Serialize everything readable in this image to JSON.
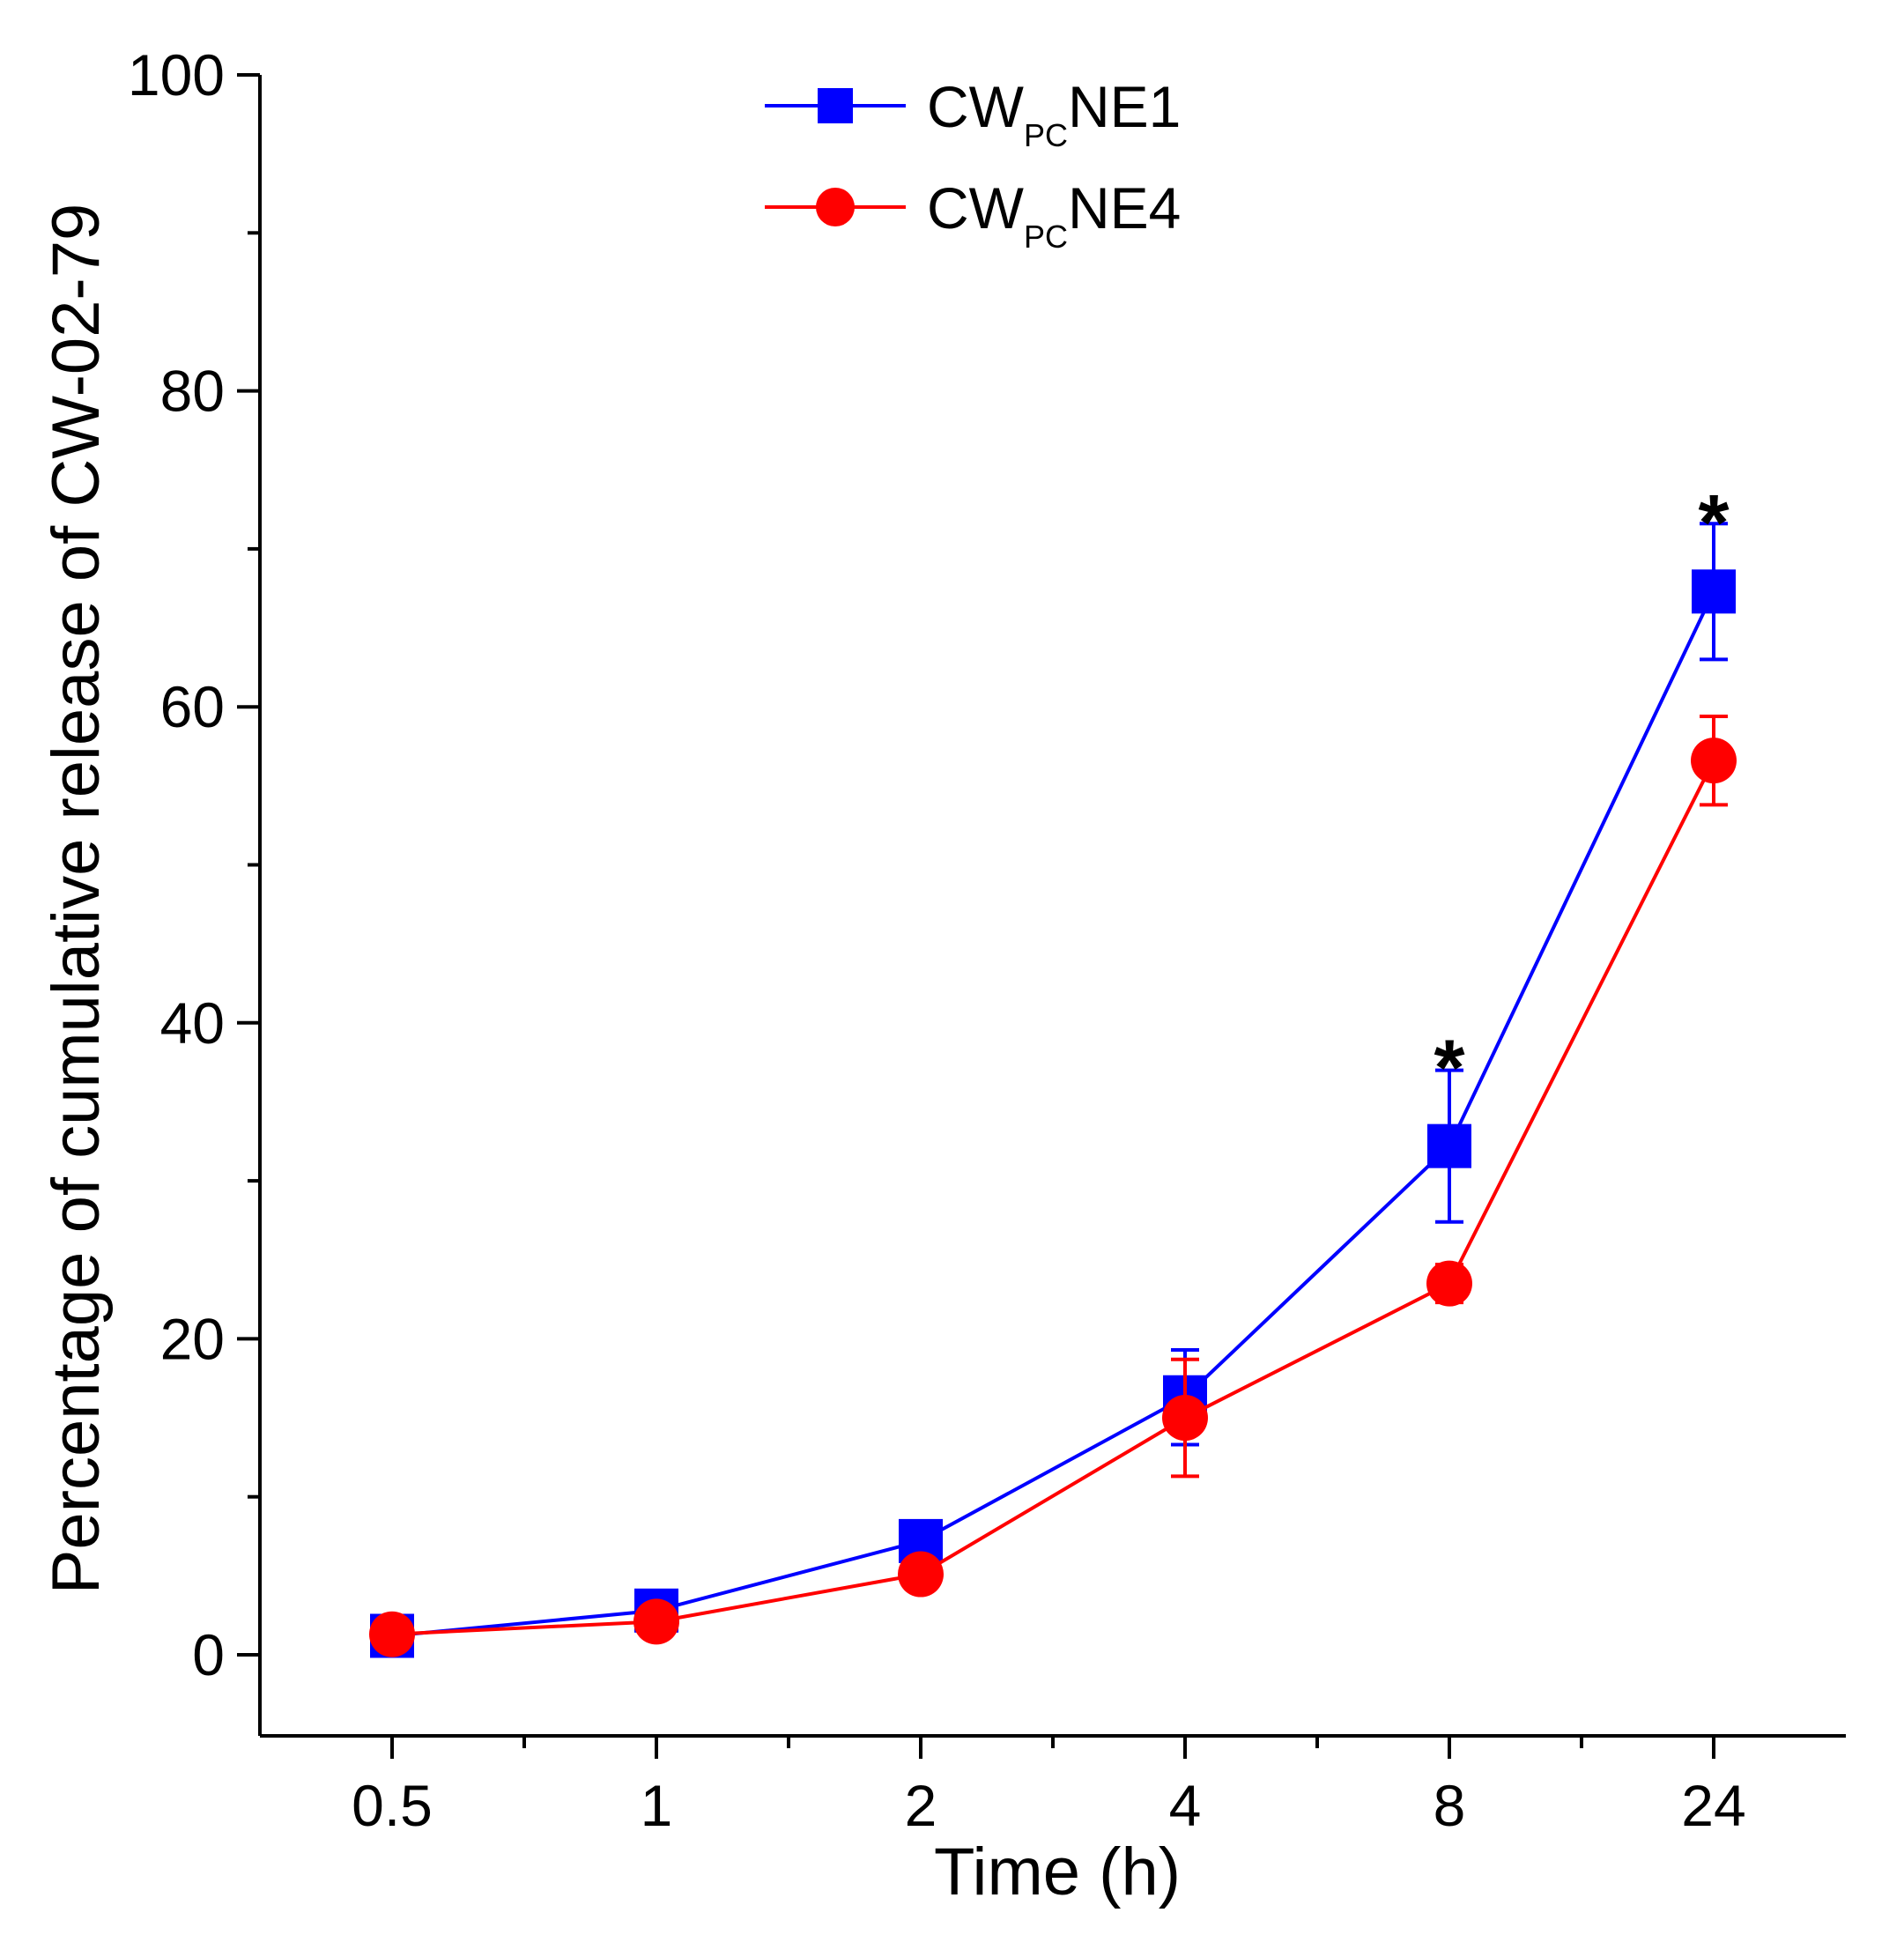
{
  "chart_data": {
    "type": "line",
    "xlabel": "Time (h)",
    "ylabel": "Percentage of cumulative release of CW-02-79",
    "categories": [
      "0.5",
      "1",
      "2",
      "4",
      "8",
      "24"
    ],
    "ylim": [
      -5,
      100
    ],
    "yticks": [
      "0",
      "20",
      "40",
      "60",
      "80",
      "100"
    ],
    "yticks_values": [
      0,
      20,
      40,
      60,
      80,
      100
    ],
    "grid": false,
    "legend_position": "top-center",
    "series": [
      {
        "name": "CW_PC NE1",
        "label_main": "CW",
        "label_sub": "PC",
        "label_tail": "NE1",
        "color": "#0000ff",
        "marker": "square",
        "values": [
          1.2,
          2.8,
          7.2,
          16.3,
          32.2,
          67.3
        ],
        "errors": [
          0.3,
          0.4,
          1.0,
          3.0,
          4.8,
          4.3
        ]
      },
      {
        "name": "CW_PC NE4",
        "label_main": "CW",
        "label_sub": "PC",
        "label_tail": "NE4",
        "color": "#ff0000",
        "marker": "circle",
        "values": [
          1.3,
          2.1,
          5.1,
          15.0,
          23.5,
          56.6
        ],
        "errors": [
          0.3,
          0.3,
          0.5,
          3.7,
          1.2,
          2.8
        ]
      }
    ],
    "annotations": [
      {
        "category": "8",
        "y": 38.5,
        "text": "*"
      },
      {
        "category": "24",
        "y": 73.0,
        "text": "*"
      }
    ]
  }
}
